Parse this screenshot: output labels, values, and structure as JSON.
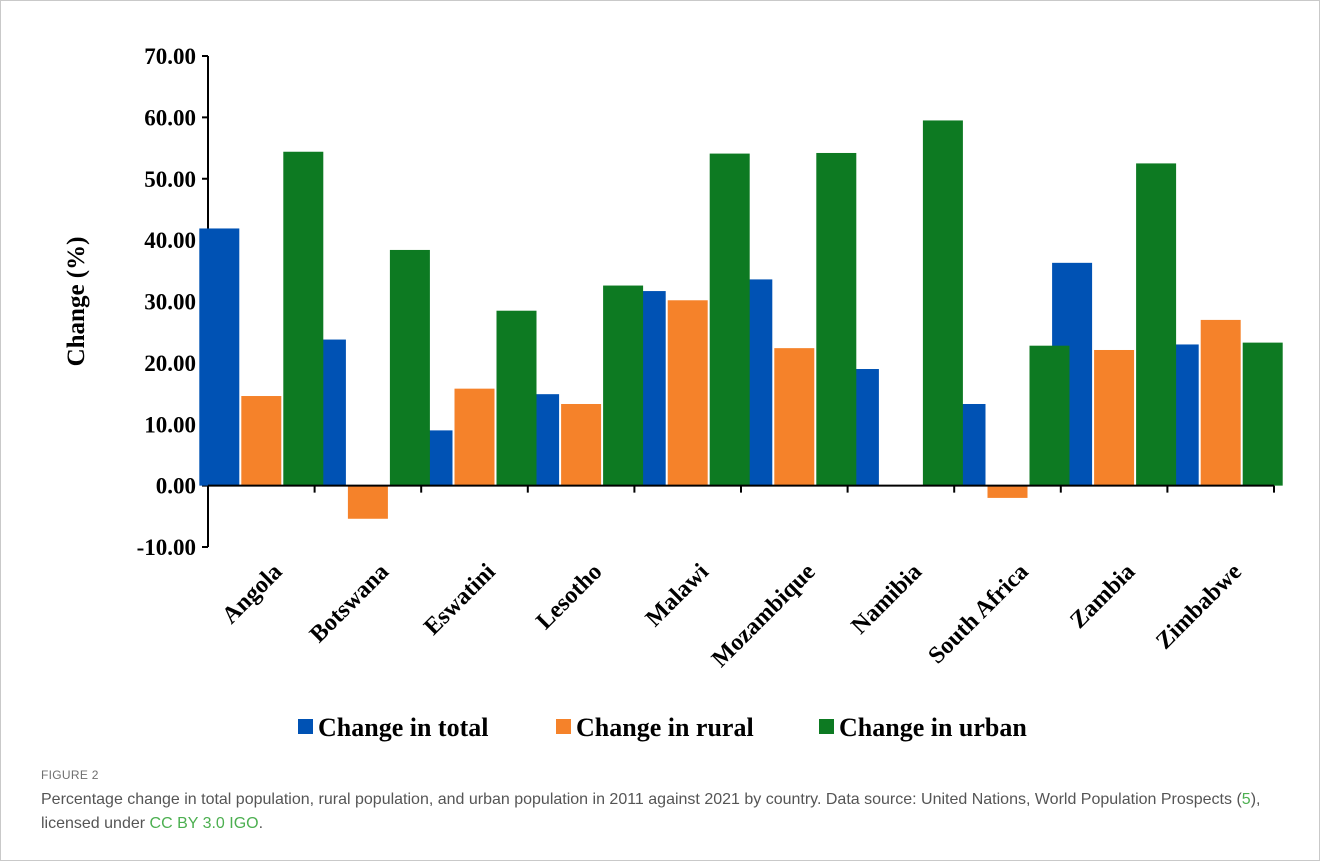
{
  "chart_data": {
    "type": "bar",
    "categories": [
      "Angola",
      "Botswana",
      "Eswatini",
      "Lesotho",
      "Malawi",
      "Mozambique",
      "Namibia",
      "South Africa",
      "Zambia",
      "Zimbabwe"
    ],
    "series": [
      {
        "name": "Change in total",
        "color": "#0052b4",
        "values": [
          41.9,
          23.8,
          9.0,
          14.9,
          31.7,
          33.6,
          19.0,
          13.3,
          36.3,
          23.0
        ]
      },
      {
        "name": "Change in rural",
        "color": "#f5822a",
        "values": [
          14.6,
          -5.4,
          15.8,
          13.3,
          30.2,
          22.4,
          null,
          -2.0,
          22.1,
          27.0
        ]
      },
      {
        "name": "Change in urban",
        "color": "#0d7a22",
        "values": [
          54.4,
          38.4,
          28.5,
          32.6,
          54.1,
          54.2,
          59.5,
          22.8,
          52.5,
          23.3
        ]
      }
    ],
    "ylabel": "Change (%)",
    "xlabel": "",
    "ylim": [
      -10,
      70
    ],
    "yticks": [
      "70.00",
      "60.00",
      "50.00",
      "40.00",
      "30.00",
      "20.00",
      "10.00",
      "0.00",
      "-10.00"
    ],
    "grid": false,
    "legend": "bottom"
  },
  "caption": {
    "label": "FIGURE 2",
    "text_before": "Percentage change in total population, rural population, and urban population in 2011 against 2021 by country. Data source: United Nations, World Population Prospects (",
    "ref": "5",
    "text_middle": "), licensed under ",
    "license": "CC BY 3.0 IGO",
    "text_after": "."
  }
}
